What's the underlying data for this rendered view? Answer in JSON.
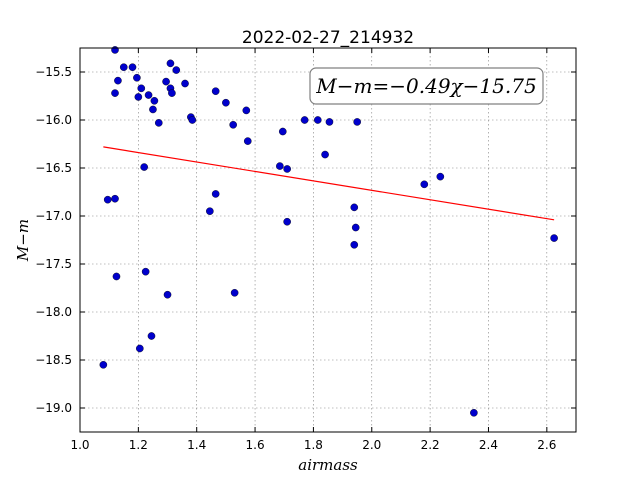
{
  "chart_data": {
    "type": "scatter",
    "title": "2022-02-27_214932",
    "xlabel": "airmass",
    "ylabel": "M−m",
    "xlim": [
      1.0,
      2.7
    ],
    "ylim": [
      -15.25,
      -19.25
    ],
    "y_inverted": true,
    "grid": true,
    "xticks": [
      1.0,
      1.2,
      1.4,
      1.6,
      1.8,
      2.0,
      2.2,
      2.4,
      2.6
    ],
    "yticks": [
      -15.5,
      -16.0,
      -16.5,
      -17.0,
      -17.5,
      -18.0,
      -18.5,
      -19.0
    ],
    "annotation": "M−m=−0.49χ−15.75",
    "colors": {
      "points": "#0000cc",
      "fit": "#ff0000"
    },
    "series": [
      {
        "kind": "points",
        "x": [
          1.12,
          1.15,
          1.18,
          1.13,
          1.195,
          1.12,
          1.21,
          1.235,
          1.2,
          1.255,
          1.25,
          1.27,
          1.295,
          1.31,
          1.33,
          1.31,
          1.315,
          1.36,
          1.38,
          1.385,
          1.465,
          1.5,
          1.525,
          1.57,
          1.575,
          1.77,
          1.815,
          1.855,
          1.95,
          1.695,
          1.84,
          1.685,
          1.71,
          1.22,
          1.465,
          2.235,
          2.18,
          1.095,
          1.12,
          1.445,
          1.94,
          1.71,
          1.945,
          2.625,
          1.94,
          1.125,
          1.225,
          1.3,
          1.53,
          1.245,
          1.205,
          1.08,
          2.35
        ],
        "y": [
          -15.27,
          -15.45,
          -15.45,
          -15.59,
          -15.56,
          -15.72,
          -15.67,
          -15.74,
          -15.76,
          -15.8,
          -15.89,
          -16.03,
          -15.6,
          -15.41,
          -15.48,
          -15.67,
          -15.72,
          -15.62,
          -15.97,
          -16.0,
          -15.7,
          -15.82,
          -16.05,
          -15.9,
          -16.22,
          -16.0,
          -16.0,
          -16.02,
          -16.02,
          -16.12,
          -16.36,
          -16.48,
          -16.51,
          -16.49,
          -16.77,
          -16.59,
          -16.67,
          -16.83,
          -16.82,
          -16.95,
          -16.91,
          -17.06,
          -17.12,
          -17.23,
          -17.3,
          -17.63,
          -17.58,
          -17.82,
          -17.8,
          -18.25,
          -18.38,
          -18.55,
          -19.05
        ]
      },
      {
        "kind": "fit",
        "x": [
          1.08,
          2.625
        ],
        "y": [
          -16.28,
          -17.04
        ]
      }
    ]
  }
}
